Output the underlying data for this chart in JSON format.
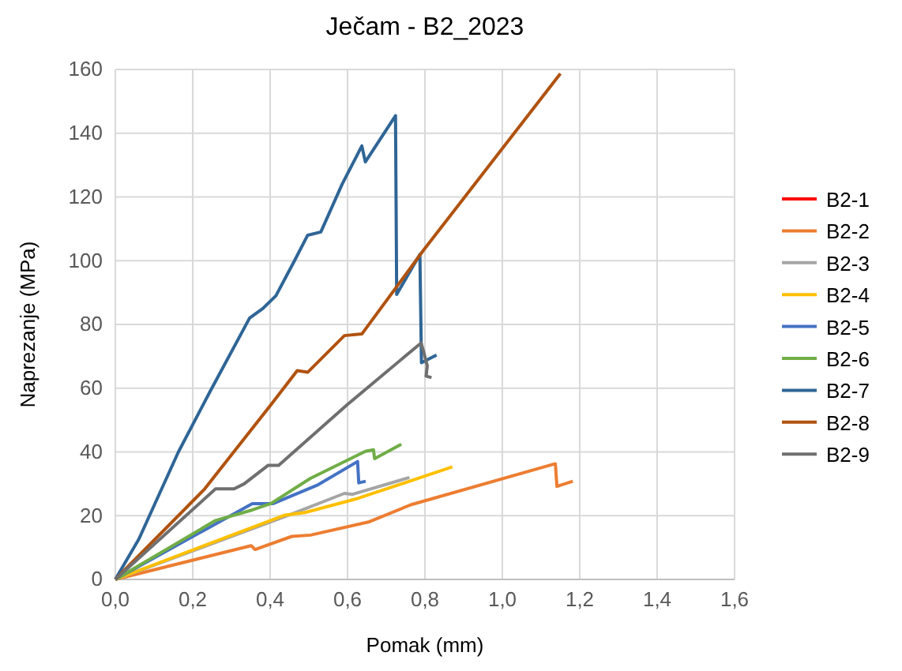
{
  "chart_data": {
    "type": "line",
    "title": "Ječam - B2_2023",
    "xlabel": "Pomak (mm)",
    "ylabel": "Naprezanje (MPa)",
    "xlim": [
      0,
      1.6
    ],
    "xticks": [
      {
        "value": 0,
        "label": "0,0"
      },
      {
        "value": 0.2,
        "label": "0,2"
      },
      {
        "value": 0.4,
        "label": "0,4"
      },
      {
        "value": 0.6,
        "label": "0,6"
      },
      {
        "value": 0.8,
        "label": "0,8"
      },
      {
        "value": 1,
        "label": "1,0"
      },
      {
        "value": 1.2,
        "label": "1,2"
      },
      {
        "value": 1.4,
        "label": "1,4"
      },
      {
        "value": 1.6,
        "label": "1,6"
      }
    ],
    "ylim": [
      0,
      160
    ],
    "yticks": [
      0,
      20,
      40,
      60,
      80,
      100,
      120,
      140,
      160
    ],
    "grid": true,
    "legend": "right",
    "marker": "none",
    "line_style": "solid",
    "series": [
      {
        "name": "B2-1",
        "color": "#ff0000"
      },
      {
        "name": "B2-2",
        "color": "#ed7d31",
        "x": [
          0,
          0.351,
          0.361,
          0.456,
          0.504,
          0.654,
          0.763,
          1.137,
          1.141,
          1.182
        ],
        "values": [
          0,
          10.6,
          9.4,
          13.5,
          13.9,
          18,
          23.4,
          36.3,
          29.2,
          30.8
        ]
      },
      {
        "name": "B2-3",
        "color": "#a5a5a5",
        "x": [
          0,
          0.456,
          0.592,
          0.613,
          0.76
        ],
        "values": [
          0,
          20.5,
          27,
          26.7,
          32
        ]
      },
      {
        "name": "B2-4",
        "color": "#ffc000",
        "x": [
          0,
          0.436,
          0.49,
          0.626,
          0.871
        ],
        "values": [
          0,
          20.1,
          21,
          25.4,
          35.3
        ]
      },
      {
        "name": "B2-5",
        "color": "#4472c4",
        "x": [
          0,
          0.354,
          0.408,
          0.524,
          0.626,
          0.629,
          0.647
        ],
        "values": [
          0,
          23.8,
          23.8,
          29.7,
          37,
          30.3,
          30.8
        ]
      },
      {
        "name": "B2-6",
        "color": "#70ad47",
        "x": [
          0,
          0.259,
          0.354,
          0.402,
          0.504,
          0.586,
          0.646,
          0.667,
          0.67,
          0.739
        ],
        "values": [
          0,
          18.5,
          21.8,
          23.8,
          31.7,
          36.6,
          40.2,
          40.7,
          37.9,
          42.4
        ]
      },
      {
        "name": "B2-7",
        "color": "#2f6596",
        "x": [
          0,
          0.061,
          0.163,
          0.245,
          0.347,
          0.381,
          0.415,
          0.463,
          0.497,
          0.531,
          0.586,
          0.637,
          0.646,
          0.724,
          0.727,
          0.787,
          0.791,
          0.83
        ],
        "values": [
          0,
          12.7,
          40,
          59,
          82,
          85,
          89,
          100,
          108,
          109,
          124,
          136,
          131,
          145.5,
          89.4,
          102,
          68,
          70.4
        ]
      },
      {
        "name": "B2-8",
        "color": "#b0520f",
        "x": [
          0,
          0.231,
          0.402,
          0.47,
          0.497,
          0.592,
          0.637,
          0.797,
          1.15
        ],
        "values": [
          0,
          28.4,
          54.8,
          65.5,
          65,
          76.5,
          77,
          103.4,
          158.7
        ]
      },
      {
        "name": "B2-9",
        "color": "#6f6f6f",
        "x": [
          0,
          0.259,
          0.307,
          0.333,
          0.395,
          0.422,
          0.599,
          0.79,
          0.797,
          0.806,
          0.803,
          0.817
        ],
        "values": [
          0,
          28.4,
          28.4,
          30,
          35.8,
          35.8,
          54.8,
          74.2,
          71.3,
          67,
          63.8,
          63.3
        ]
      }
    ]
  }
}
